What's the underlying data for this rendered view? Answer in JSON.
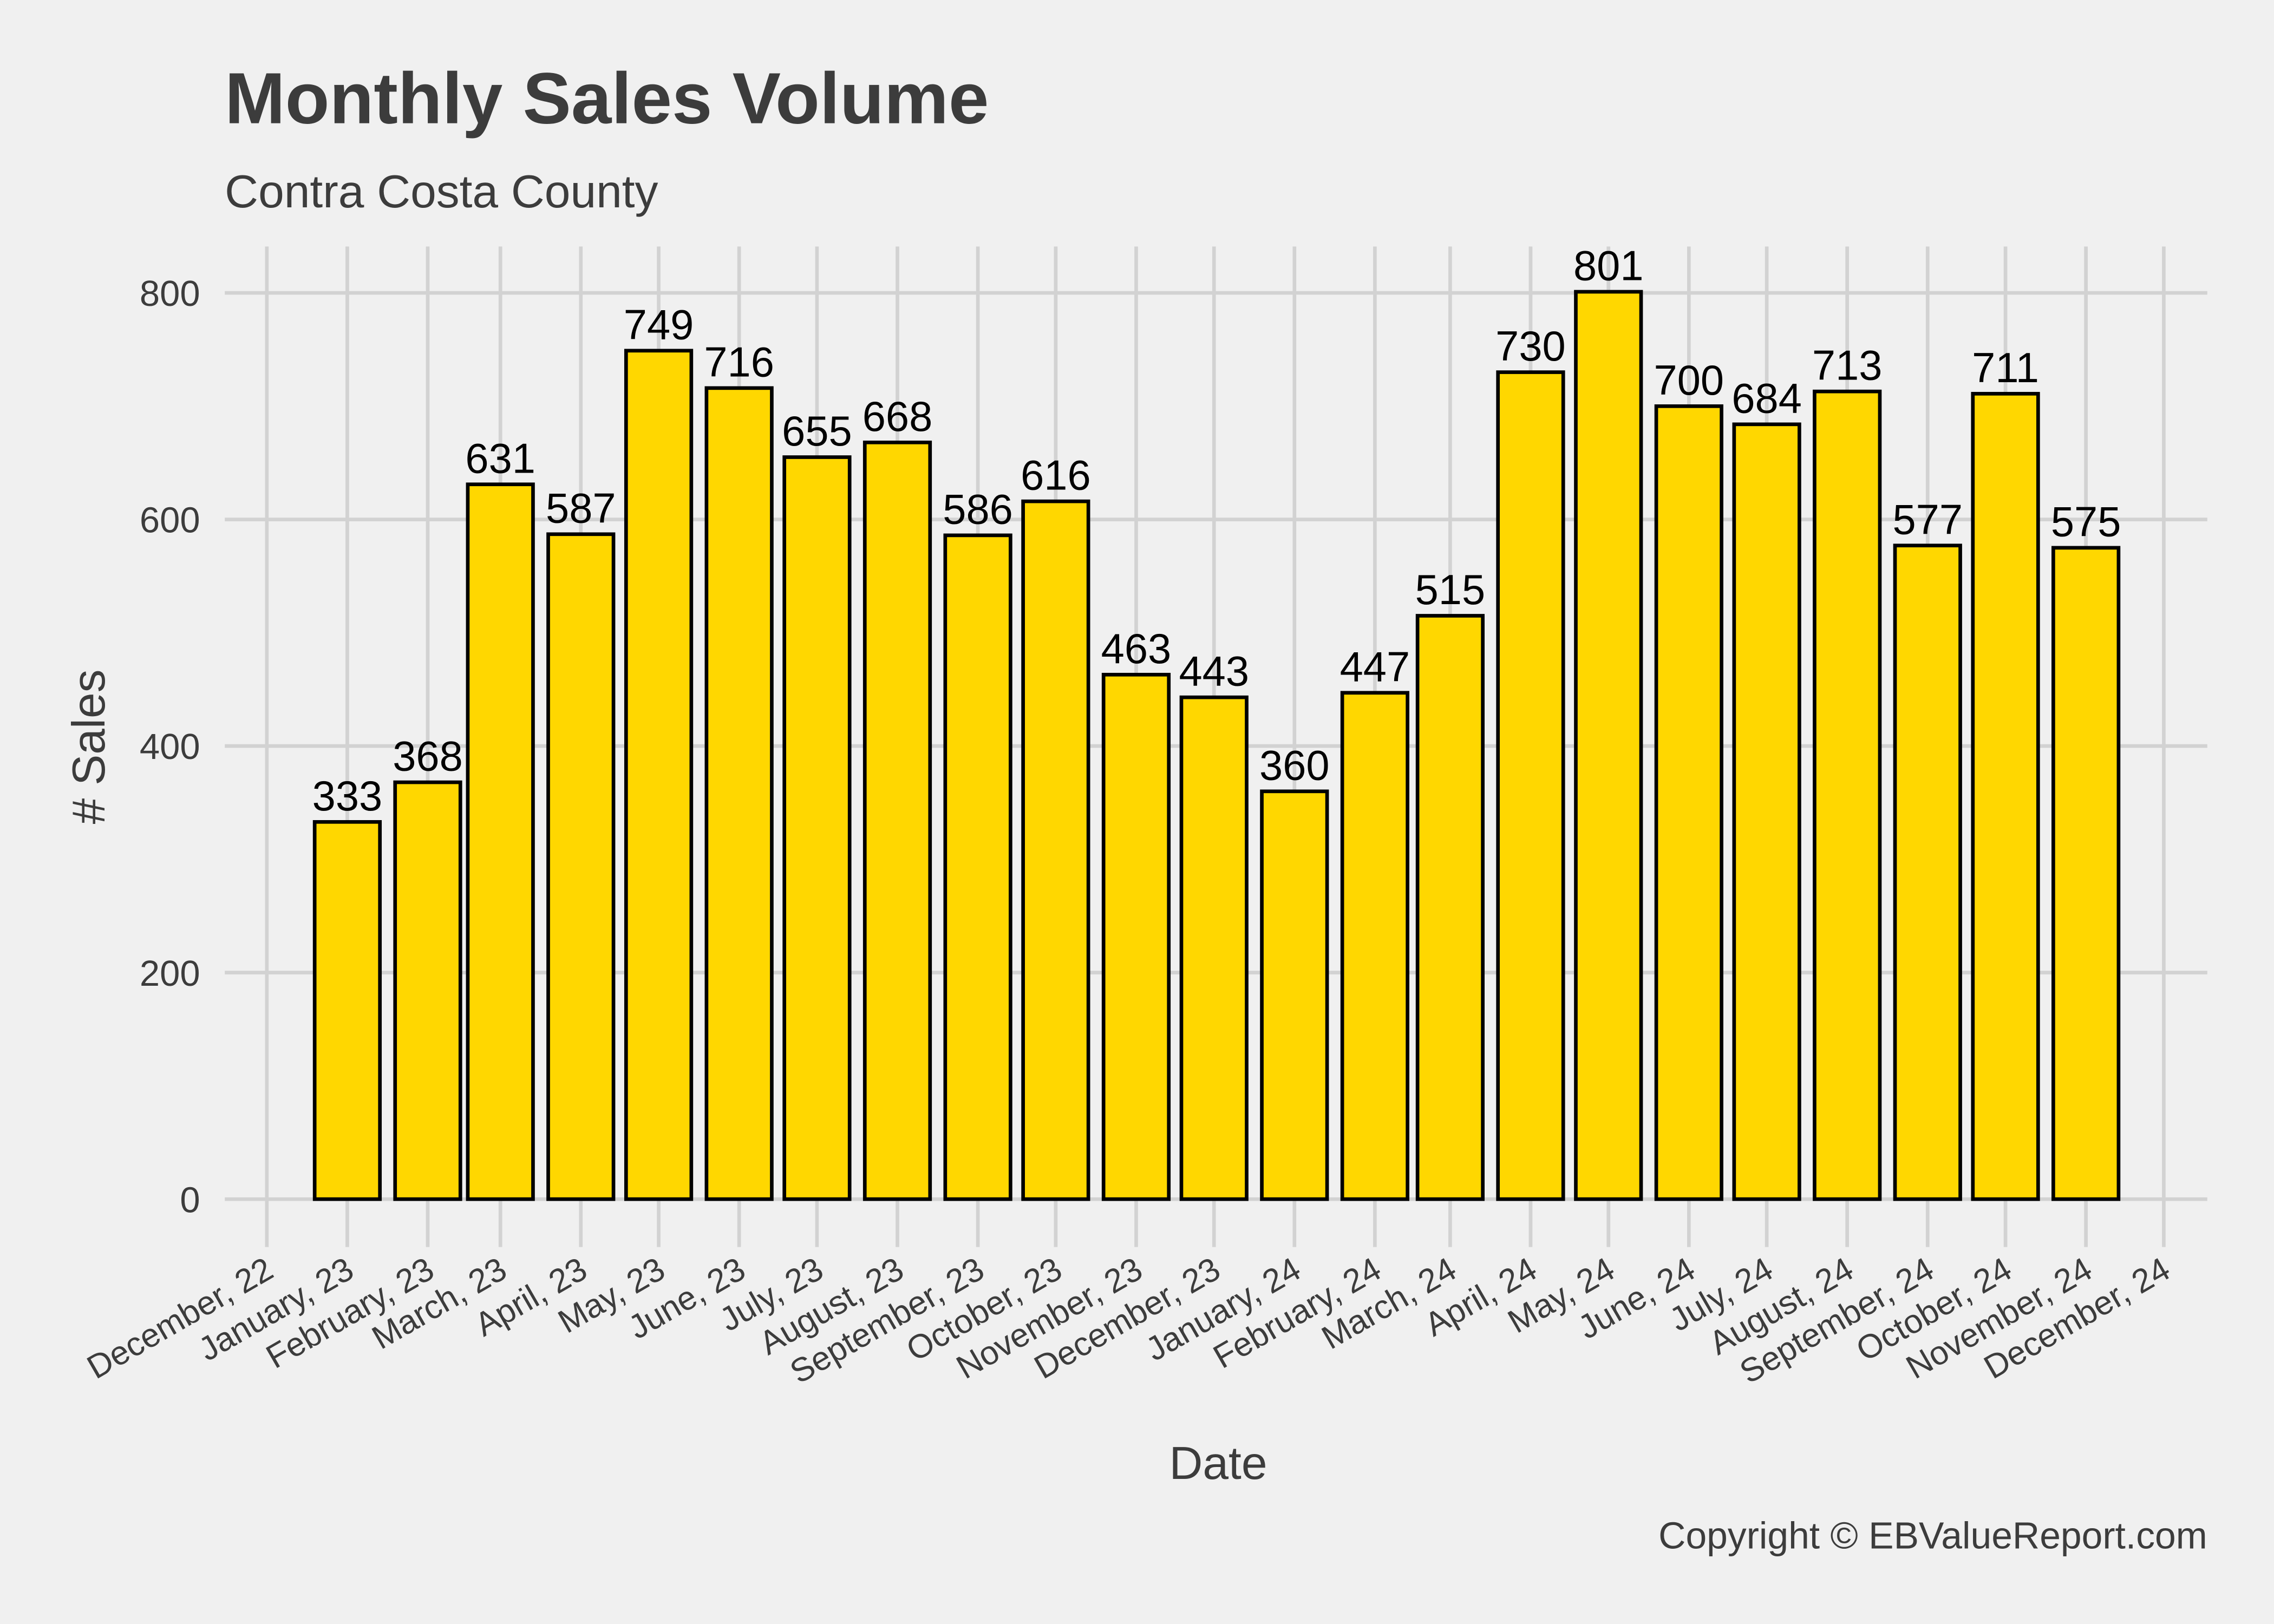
{
  "chart_data": {
    "type": "bar",
    "title": "Monthly Sales Volume",
    "subtitle": "Contra Costa County",
    "xlabel": "Date",
    "ylabel": "# Sales",
    "caption": "Copyright  © EBValueReport.com",
    "ylim": [
      0,
      800
    ],
    "y_ticks": [
      0,
      200,
      400,
      600,
      800
    ],
    "x_ticks": [
      "December, 22",
      "January, 23",
      "February, 23",
      "March, 23",
      "April, 23",
      "May, 23",
      "June, 23",
      "July, 23",
      "August, 23",
      "September, 23",
      "October, 23",
      "November, 23",
      "December, 23",
      "January, 24",
      "February, 24",
      "March, 24",
      "April, 24",
      "May, 24",
      "June, 24",
      "July, 24",
      "August, 24",
      "September, 24",
      "October, 24",
      "November, 24",
      "December, 24"
    ],
    "x_tick_dates": [
      "2022-12-01",
      "2023-01-01",
      "2023-02-01",
      "2023-03-01",
      "2023-04-01",
      "2023-05-01",
      "2023-06-01",
      "2023-07-01",
      "2023-08-01",
      "2023-09-01",
      "2023-10-01",
      "2023-11-01",
      "2023-12-01",
      "2024-01-01",
      "2024-02-01",
      "2024-03-01",
      "2024-04-01",
      "2024-05-01",
      "2024-06-01",
      "2024-07-01",
      "2024-08-01",
      "2024-09-01",
      "2024-10-01",
      "2024-11-01",
      "2024-12-01"
    ],
    "bar_dates": [
      "2023-01-01",
      "2023-02-01",
      "2023-03-01",
      "2023-04-01",
      "2023-05-01",
      "2023-06-01",
      "2023-07-01",
      "2023-08-01",
      "2023-09-01",
      "2023-10-01",
      "2023-11-01",
      "2023-12-01",
      "2024-01-01",
      "2024-02-01",
      "2024-03-01",
      "2024-04-01",
      "2024-05-01",
      "2024-06-01",
      "2024-07-01",
      "2024-08-01",
      "2024-09-01",
      "2024-10-01",
      "2024-11-01"
    ],
    "values": [
      333,
      368,
      631,
      587,
      749,
      716,
      655,
      668,
      586,
      616,
      463,
      443,
      360,
      447,
      515,
      730,
      801,
      700,
      684,
      713,
      577,
      711,
      575
    ],
    "bar_color": "#FFD700",
    "bar_outline": "#000000",
    "grid": true
  }
}
